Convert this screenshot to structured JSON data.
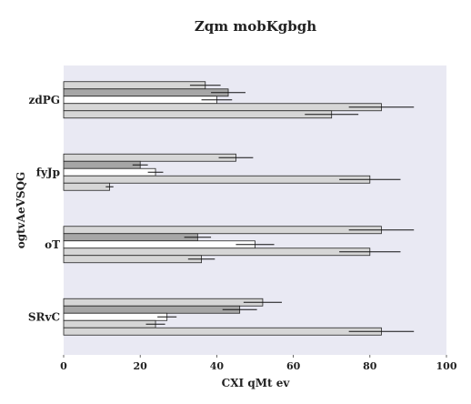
{
  "chart_data": {
    "type": "bar",
    "orientation": "horizontal",
    "title": "Zqm mobKgbgh",
    "xlabel": "CXI qMt ev",
    "ylabel": "ogtvAeVSQG",
    "xlim": [
      0,
      100
    ],
    "xticks": [
      0,
      20,
      40,
      60,
      80,
      100
    ],
    "categories": [
      "zdPG",
      "fyJp",
      "oT",
      "SRvC"
    ],
    "grid": false,
    "background": "#e9e9f3",
    "series": [
      {
        "color": "#d6d6d6",
        "values": [
          37,
          45,
          83,
          52
        ],
        "errors": [
          4,
          4.5,
          8.5,
          5
        ]
      },
      {
        "color": "#a6a6a6",
        "values": [
          43,
          20,
          35,
          46
        ],
        "errors": [
          4.5,
          2,
          3.5,
          4.5
        ]
      },
      {
        "color": "#ffffff",
        "values": [
          40,
          24,
          50,
          27
        ],
        "errors": [
          4,
          2,
          5,
          2.5
        ]
      },
      {
        "color": "#d6d6d6",
        "values": [
          83,
          80,
          80,
          24
        ],
        "errors": [
          8.5,
          8,
          8,
          2.5
        ]
      },
      {
        "color": "#d6d6d6",
        "values": [
          70,
          12,
          36,
          83
        ],
        "errors": [
          7,
          1,
          3.5,
          8.5
        ]
      }
    ]
  }
}
